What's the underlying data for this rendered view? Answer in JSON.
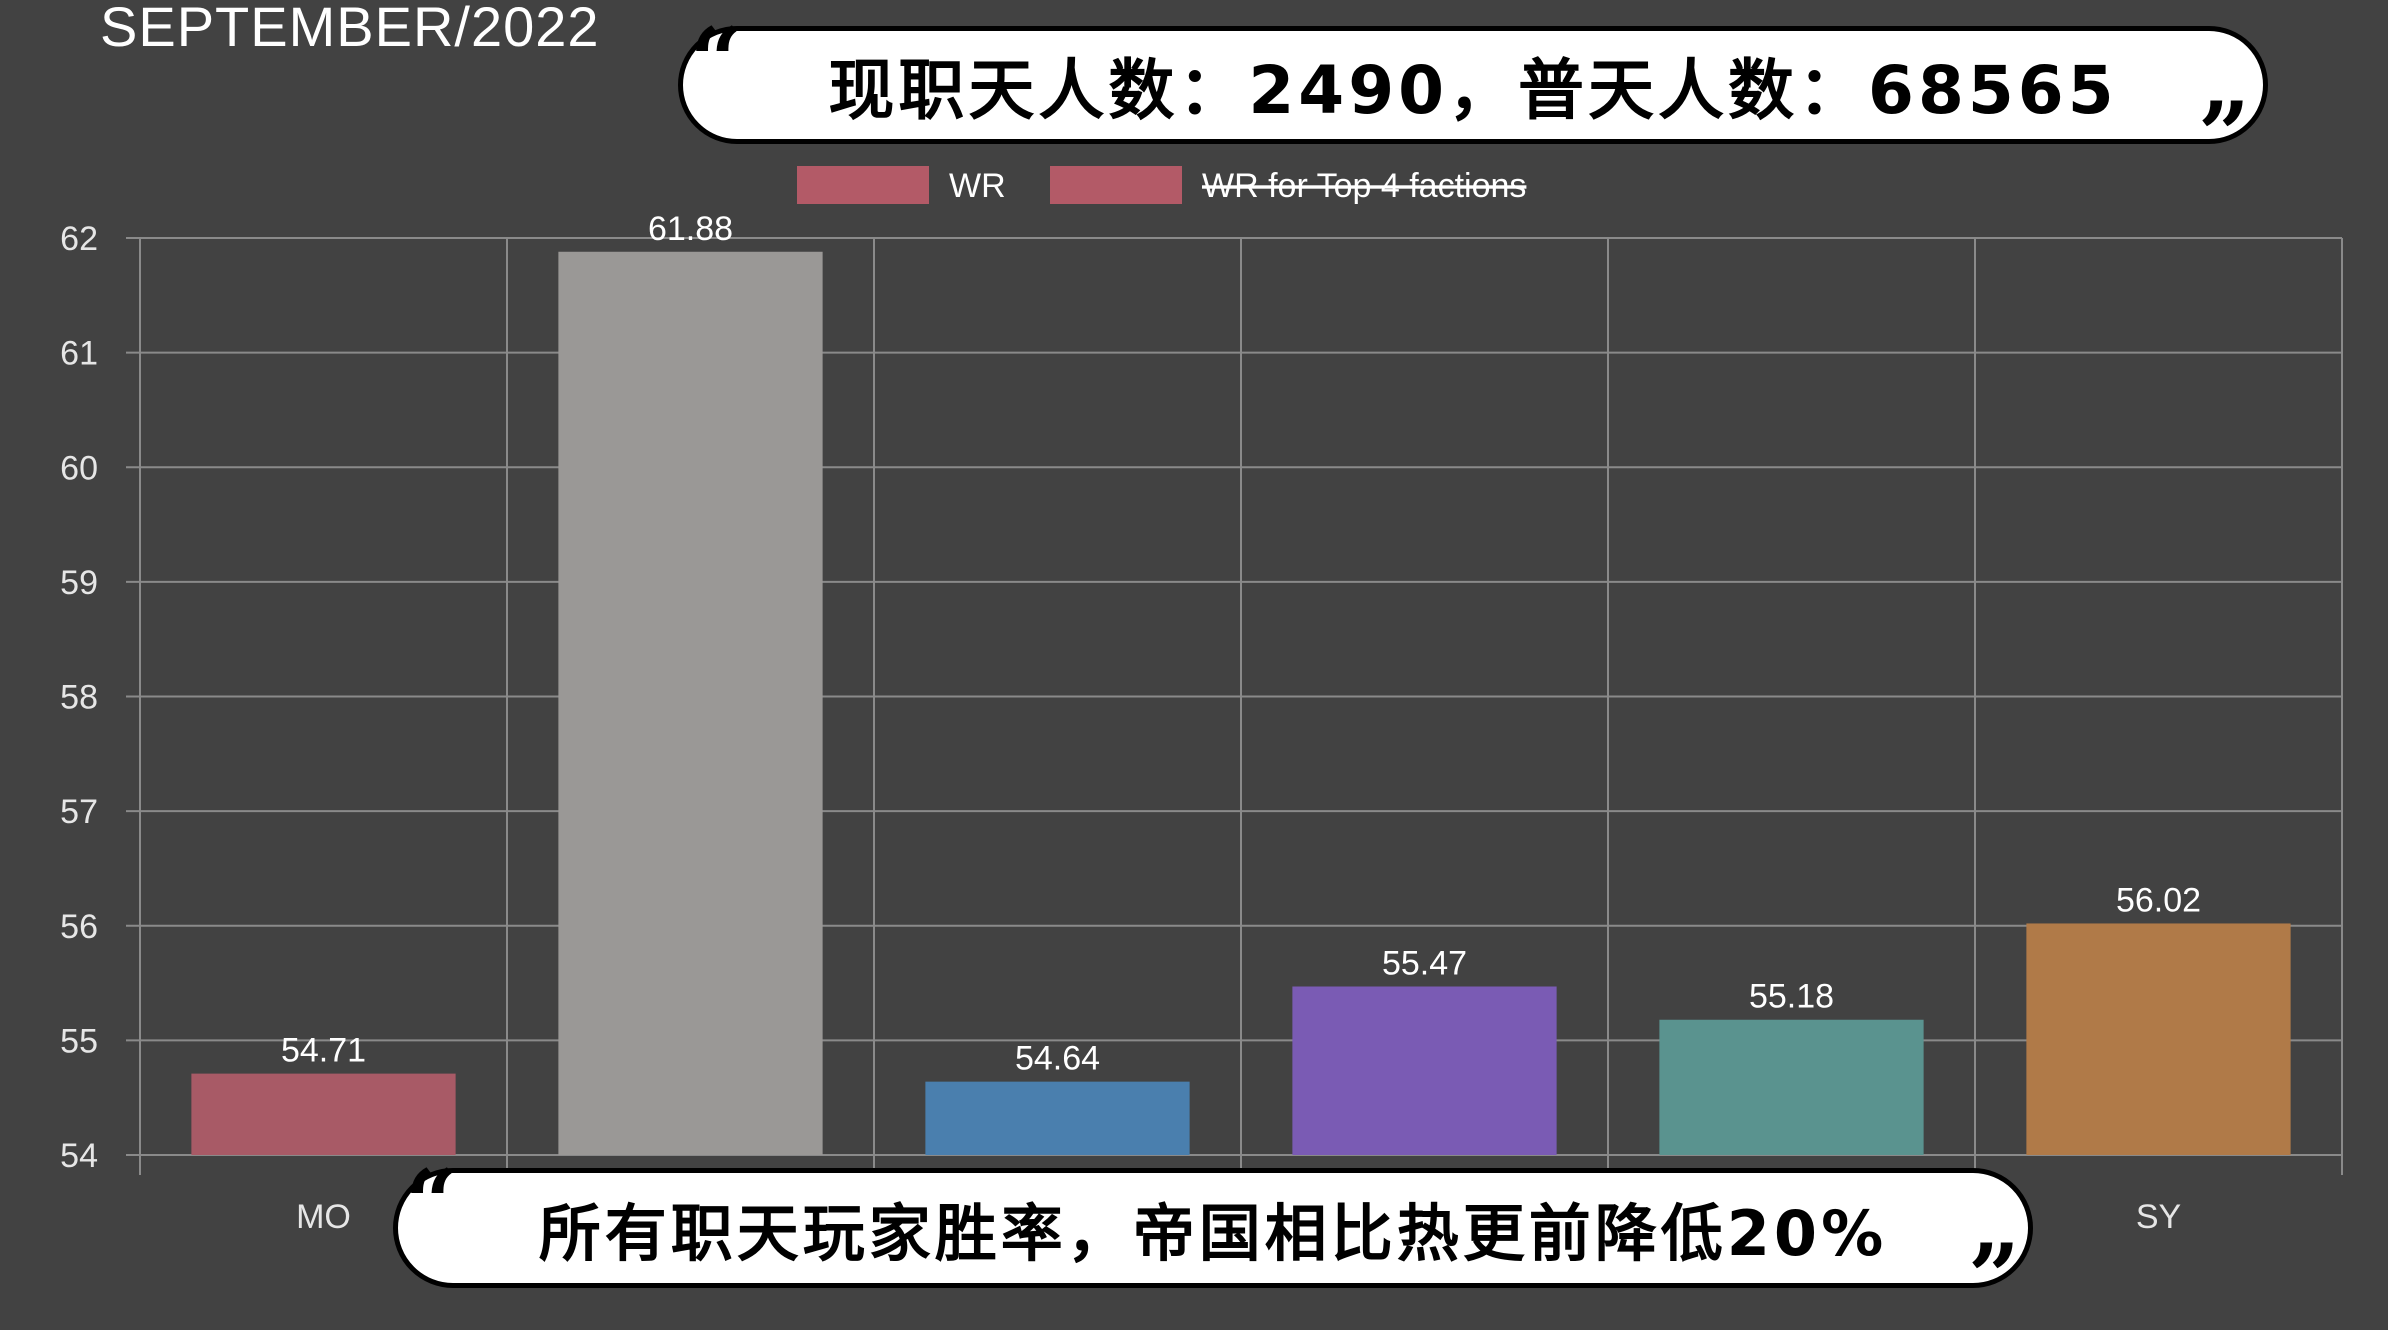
{
  "title": "SEPTEMBER/2022",
  "banner_top": "现职天人数：2490，普天人数：68565",
  "banner_bottom": "所有职天玩家胜率，帝国相比热更前降低20%",
  "quote_open": "“",
  "quote_close": "”",
  "chart_data": {
    "type": "bar",
    "title": "SEPTEMBER/2022",
    "categories": [
      "MO",
      "",
      "",
      "",
      "",
      "SY"
    ],
    "values": [
      54.71,
      61.88,
      54.64,
      55.47,
      55.18,
      56.02
    ],
    "value_labels": [
      "54.71",
      "61.88",
      "54.64",
      "55.47",
      "55.18",
      "56.02"
    ],
    "bar_colors": [
      "#a85a66",
      "#9a9896",
      "#4a7fae",
      "#7a5bb4",
      "#5a938f",
      "#b07a48"
    ],
    "ylim": [
      54,
      62
    ],
    "yticks": [
      "54",
      "55",
      "56",
      "57",
      "58",
      "59",
      "60",
      "61",
      "62"
    ],
    "grid": true,
    "legend": [
      {
        "label": "WR",
        "color": "#b35a67",
        "hidden": false
      },
      {
        "label": "WR for Top 4 factions",
        "color": "#b35a67",
        "hidden": true
      }
    ],
    "legend_position": "top-center",
    "colors": {
      "background": "#424242",
      "grid": "#8a8a8a",
      "text": "#ffffff",
      "tick_text": "#e6e6e6"
    }
  }
}
